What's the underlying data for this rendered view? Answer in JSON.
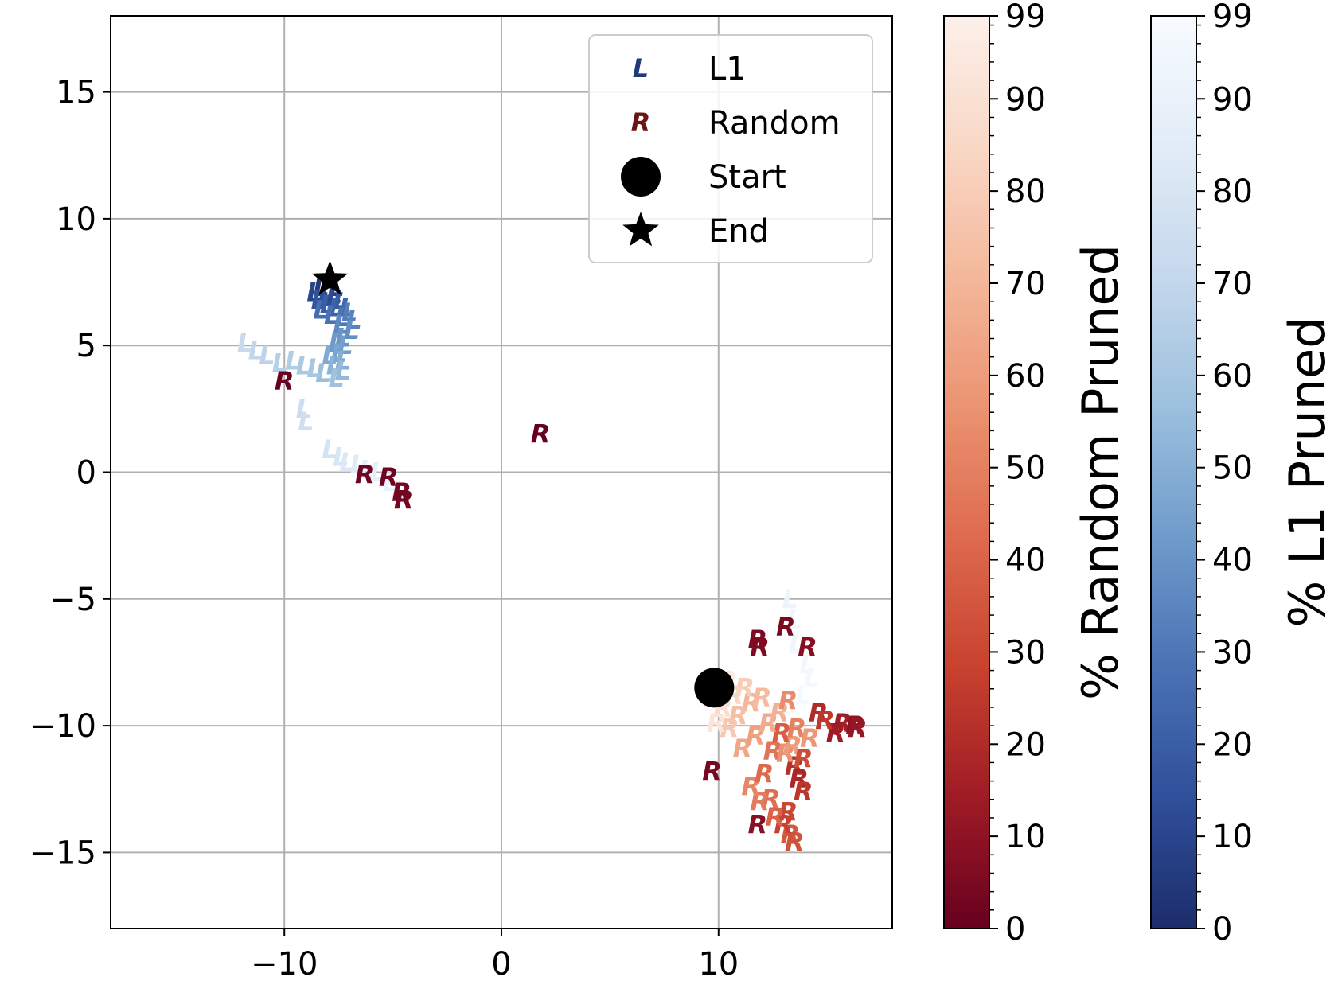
{
  "chart_data": {
    "type": "scatter",
    "title": "",
    "xlabel": "",
    "ylabel": "",
    "xlim": [
      -18,
      18
    ],
    "ylim": [
      -18,
      18
    ],
    "xticks": [
      -10,
      0,
      10
    ],
    "yticks": [
      15,
      10,
      5,
      0,
      -5,
      -10,
      -15
    ],
    "grid": true,
    "legend_position": "top-right",
    "legend": [
      {
        "label": "L1",
        "marker": "L",
        "color": "#1f3a7a"
      },
      {
        "label": "Random",
        "marker": "R",
        "color": "#6a1414"
      },
      {
        "label": "Start",
        "marker": "circle",
        "color": "#000000"
      },
      {
        "label": "End",
        "marker": "star",
        "color": "#000000"
      }
    ],
    "start_point": {
      "x": 9.8,
      "y": -8.5
    },
    "end_point": {
      "x": -7.9,
      "y": 7.6
    },
    "series": [
      {
        "name": "L1",
        "marker": "L",
        "points": [
          {
            "x": -7.9,
            "y": 7.6,
            "pct": 0
          },
          {
            "x": -8.3,
            "y": 7.3,
            "pct": 5
          },
          {
            "x": -7.6,
            "y": 7.3,
            "pct": 8
          },
          {
            "x": -8.6,
            "y": 7.1,
            "pct": 10
          },
          {
            "x": -7.7,
            "y": 7.0,
            "pct": 12
          },
          {
            "x": -8.1,
            "y": 6.9,
            "pct": 14
          },
          {
            "x": -8.4,
            "y": 6.8,
            "pct": 16
          },
          {
            "x": -7.4,
            "y": 6.8,
            "pct": 18
          },
          {
            "x": -8.0,
            "y": 6.6,
            "pct": 20
          },
          {
            "x": -7.6,
            "y": 6.5,
            "pct": 22
          },
          {
            "x": -7.1,
            "y": 6.5,
            "pct": 24
          },
          {
            "x": -8.3,
            "y": 6.4,
            "pct": 26
          },
          {
            "x": -7.8,
            "y": 6.2,
            "pct": 28
          },
          {
            "x": -7.3,
            "y": 6.1,
            "pct": 30
          },
          {
            "x": -7.0,
            "y": 6.3,
            "pct": 32
          },
          {
            "x": -6.8,
            "y": 6.0,
            "pct": 34
          },
          {
            "x": -7.4,
            "y": 5.8,
            "pct": 36
          },
          {
            "x": -6.9,
            "y": 5.6,
            "pct": 38
          },
          {
            "x": -7.3,
            "y": 5.3,
            "pct": 40
          },
          {
            "x": -7.6,
            "y": 5.1,
            "pct": 42
          },
          {
            "x": -7.2,
            "y": 5.0,
            "pct": 44
          },
          {
            "x": -7.5,
            "y": 4.7,
            "pct": 46
          },
          {
            "x": -7.9,
            "y": 4.6,
            "pct": 48
          },
          {
            "x": -7.3,
            "y": 4.4,
            "pct": 50
          },
          {
            "x": -7.7,
            "y": 4.2,
            "pct": 52
          },
          {
            "x": -7.3,
            "y": 4.0,
            "pct": 54
          },
          {
            "x": -8.2,
            "y": 3.9,
            "pct": 56
          },
          {
            "x": -7.6,
            "y": 3.7,
            "pct": 58
          },
          {
            "x": -8.6,
            "y": 4.1,
            "pct": 60
          },
          {
            "x": -9.1,
            "y": 4.2,
            "pct": 62
          },
          {
            "x": -9.6,
            "y": 4.4,
            "pct": 64
          },
          {
            "x": -10.2,
            "y": 4.3,
            "pct": 66
          },
          {
            "x": -10.8,
            "y": 4.6,
            "pct": 68
          },
          {
            "x": -11.3,
            "y": 4.8,
            "pct": 70
          },
          {
            "x": -11.8,
            "y": 5.1,
            "pct": 72
          },
          {
            "x": -9.1,
            "y": 2.5,
            "pct": 74
          },
          {
            "x": -9.0,
            "y": 2.0,
            "pct": 76
          },
          {
            "x": -7.9,
            "y": 0.9,
            "pct": 78
          },
          {
            "x": -7.4,
            "y": 0.6,
            "pct": 80
          },
          {
            "x": -7.1,
            "y": 0.4,
            "pct": 82
          },
          {
            "x": -6.6,
            "y": 0.3,
            "pct": 84
          },
          {
            "x": -6.2,
            "y": 0.1,
            "pct": 86
          },
          {
            "x": -5.7,
            "y": 0.0,
            "pct": 88
          },
          {
            "x": -5.1,
            "y": -0.4,
            "pct": 90
          },
          {
            "x": -4.7,
            "y": -0.7,
            "pct": 91
          },
          {
            "x": 13.3,
            "y": -5.0,
            "pct": 92
          },
          {
            "x": 13.5,
            "y": -5.8,
            "pct": 93
          },
          {
            "x": 13.6,
            "y": -6.8,
            "pct": 94
          },
          {
            "x": 14.1,
            "y": -7.6,
            "pct": 95
          },
          {
            "x": 14.3,
            "y": -8.1,
            "pct": 96
          },
          {
            "x": 13.9,
            "y": -8.8,
            "pct": 97
          },
          {
            "x": 13.2,
            "y": -9.2,
            "pct": 98
          },
          {
            "x": 12.5,
            "y": -9.6,
            "pct": 99
          }
        ]
      },
      {
        "name": "Random",
        "marker": "R",
        "points": [
          {
            "x": -10.0,
            "y": 3.6,
            "pct": 0
          },
          {
            "x": 1.8,
            "y": 1.5,
            "pct": 0
          },
          {
            "x": -6.3,
            "y": -0.1,
            "pct": 2
          },
          {
            "x": -5.2,
            "y": -0.2,
            "pct": 2
          },
          {
            "x": -4.6,
            "y": -0.8,
            "pct": 3
          },
          {
            "x": -4.5,
            "y": -1.1,
            "pct": 3
          },
          {
            "x": 11.8,
            "y": -6.6,
            "pct": 6
          },
          {
            "x": 11.9,
            "y": -6.9,
            "pct": 6
          },
          {
            "x": 13.1,
            "y": -6.1,
            "pct": 5
          },
          {
            "x": 14.1,
            "y": -6.9,
            "pct": 8
          },
          {
            "x": 9.7,
            "y": -11.8,
            "pct": 4
          },
          {
            "x": 11.8,
            "y": -13.9,
            "pct": 8
          },
          {
            "x": 15.7,
            "y": -9.9,
            "pct": 15
          },
          {
            "x": 16.3,
            "y": -10.0,
            "pct": 10
          },
          {
            "x": 16.4,
            "y": -10.1,
            "pct": 12
          },
          {
            "x": 15.4,
            "y": -10.3,
            "pct": 14
          },
          {
            "x": 14.6,
            "y": -9.5,
            "pct": 20
          },
          {
            "x": 14.9,
            "y": -9.8,
            "pct": 25
          },
          {
            "x": 13.5,
            "y": -11.6,
            "pct": 22
          },
          {
            "x": 13.7,
            "y": -12.1,
            "pct": 18
          },
          {
            "x": 13.9,
            "y": -12.6,
            "pct": 24
          },
          {
            "x": 13.2,
            "y": -13.4,
            "pct": 30
          },
          {
            "x": 13.3,
            "y": -14.3,
            "pct": 36
          },
          {
            "x": 13.5,
            "y": -14.6,
            "pct": 34
          },
          {
            "x": 13.0,
            "y": -13.9,
            "pct": 28
          },
          {
            "x": 12.6,
            "y": -13.6,
            "pct": 40
          },
          {
            "x": 12.4,
            "y": -12.9,
            "pct": 44
          },
          {
            "x": 11.9,
            "y": -13.0,
            "pct": 48
          },
          {
            "x": 11.5,
            "y": -12.4,
            "pct": 52
          },
          {
            "x": 12.1,
            "y": -11.9,
            "pct": 42
          },
          {
            "x": 12.5,
            "y": -11.0,
            "pct": 46
          },
          {
            "x": 13.1,
            "y": -11.1,
            "pct": 56
          },
          {
            "x": 13.4,
            "y": -10.8,
            "pct": 60
          },
          {
            "x": 12.9,
            "y": -10.3,
            "pct": 38
          },
          {
            "x": 13.6,
            "y": -10.1,
            "pct": 50
          },
          {
            "x": 14.2,
            "y": -10.5,
            "pct": 58
          },
          {
            "x": 13.9,
            "y": -11.3,
            "pct": 32
          },
          {
            "x": 11.1,
            "y": -10.9,
            "pct": 64
          },
          {
            "x": 11.7,
            "y": -10.4,
            "pct": 62
          },
          {
            "x": 12.3,
            "y": -9.9,
            "pct": 66
          },
          {
            "x": 12.8,
            "y": -9.5,
            "pct": 68
          },
          {
            "x": 11.5,
            "y": -9.1,
            "pct": 70
          },
          {
            "x": 10.9,
            "y": -9.6,
            "pct": 74
          },
          {
            "x": 10.5,
            "y": -10.1,
            "pct": 78
          },
          {
            "x": 11.2,
            "y": -8.5,
            "pct": 80
          },
          {
            "x": 10.7,
            "y": -8.8,
            "pct": 84
          },
          {
            "x": 10.2,
            "y": -9.3,
            "pct": 88
          },
          {
            "x": 9.9,
            "y": -9.9,
            "pct": 92
          },
          {
            "x": 10.4,
            "y": -8.2,
            "pct": 96
          },
          {
            "x": 12.0,
            "y": -8.9,
            "pct": 72
          },
          {
            "x": 13.2,
            "y": -9.0,
            "pct": 54
          }
        ]
      }
    ],
    "colorbars": [
      {
        "label": "% Random Pruned",
        "range": [
          0,
          99
        ],
        "ticks": [
          0,
          10,
          20,
          30,
          40,
          50,
          60,
          70,
          80,
          90,
          99
        ],
        "colors": [
          "#67001f",
          "#9f1b25",
          "#c7422f",
          "#de6a4f",
          "#eb9372",
          "#f4b89b",
          "#f9d8c6",
          "#fcf0ea"
        ]
      },
      {
        "label": "% L1 Pruned",
        "range": [
          0,
          99
        ],
        "ticks": [
          0,
          10,
          20,
          30,
          40,
          50,
          60,
          70,
          80,
          90,
          99
        ],
        "colors": [
          "#1c2d6b",
          "#2f4f9a",
          "#4a72b4",
          "#6f9bcb",
          "#9cc0de",
          "#c5d8ec",
          "#e2ecf7",
          "#f7fbff"
        ]
      }
    ]
  }
}
